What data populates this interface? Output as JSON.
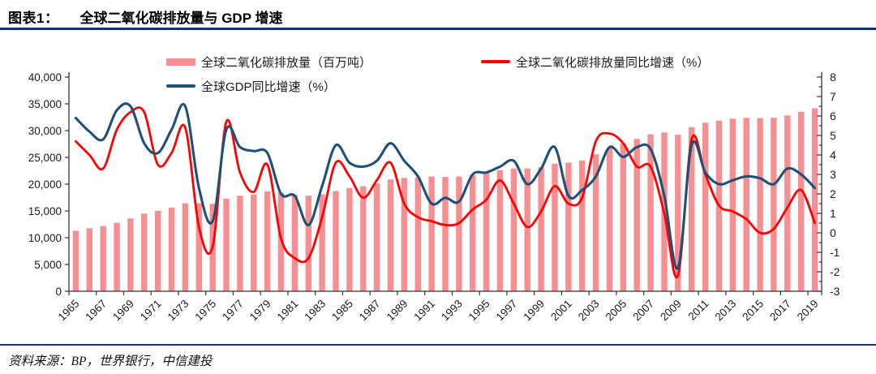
{
  "header": {
    "figure_label": "图表1：",
    "title": "全球二氧化碳排放量与 GDP 增速"
  },
  "footer": {
    "source": "资料来源：BP，世界银行，中信建投"
  },
  "colors": {
    "rule_blue": "#17375E",
    "bar_pink": "#F78F92",
    "line_red": "#FF0000",
    "line_blue": "#1F5078",
    "axis": "#333333",
    "text": "#1A1A1A",
    "background": "#FFFFFF"
  },
  "chart_data": {
    "type": "combo",
    "title": "全球二氧化碳排放量与 GDP 增速",
    "legend_position": "top",
    "grid": false,
    "x_years": [
      1965,
      1966,
      1967,
      1968,
      1969,
      1970,
      1971,
      1972,
      1973,
      1974,
      1975,
      1976,
      1977,
      1978,
      1979,
      1980,
      1981,
      1982,
      1983,
      1984,
      1985,
      1986,
      1987,
      1988,
      1989,
      1990,
      1991,
      1992,
      1993,
      1994,
      1995,
      1996,
      1997,
      1998,
      1999,
      2000,
      2001,
      2002,
      2003,
      2004,
      2005,
      2006,
      2007,
      2008,
      2009,
      2010,
      2011,
      2012,
      2013,
      2014,
      2015,
      2016,
      2017,
      2018,
      2019
    ],
    "x_tick_labels": [
      "1965",
      "1967",
      "1969",
      "1971",
      "1973",
      "1975",
      "1977",
      "1979",
      "1981",
      "1983",
      "1985",
      "1987",
      "1989",
      "1991",
      "1993",
      "1995",
      "1997",
      "1999",
      "2001",
      "2003",
      "2005",
      "2007",
      "2009",
      "2011",
      "2013",
      "2015",
      "2017",
      "2019"
    ],
    "left_axis": {
      "min": 0,
      "max": 40000,
      "step": 5000,
      "tick_labels": [
        "0",
        "5,000",
        "10,000",
        "15,000",
        "20,000",
        "25,000",
        "30,000",
        "35,000",
        "40,000"
      ]
    },
    "right_axis": {
      "min": -3,
      "max": 8,
      "step": 1,
      "minor_step": 0.5,
      "tick_labels": [
        "-3",
        "-2",
        "-1",
        "0",
        "1",
        "2",
        "3",
        "4",
        "5",
        "6",
        "7",
        "8"
      ]
    },
    "series": [
      {
        "name": "全球二氧化碳排放量（百万吨）",
        "type": "bar",
        "axis": "left",
        "color": "#F78F92",
        "values": [
          11300,
          11750,
          12150,
          12800,
          13600,
          14500,
          15030,
          15640,
          16430,
          16440,
          16340,
          17310,
          17850,
          18080,
          18650,
          18440,
          17990,
          17850,
          18110,
          18730,
          19280,
          19600,
          20130,
          20880,
          21160,
          21290,
          21430,
          21350,
          21430,
          21680,
          22040,
          22610,
          22920,
          22940,
          23180,
          23840,
          24010,
          24420,
          25580,
          26770,
          27630,
          28450,
          29300,
          29650,
          29230,
          30640,
          31470,
          31880,
          32220,
          32390,
          32350,
          32390,
          32840,
          33510,
          34170
        ]
      },
      {
        "name": "全球二氧化碳排放量同比增速（%）",
        "type": "line",
        "axis": "right",
        "color": "#FF0000",
        "values": [
          4.7,
          4.0,
          3.3,
          5.3,
          6.2,
          6.2,
          3.5,
          4.1,
          5.4,
          0.3,
          -0.7,
          5.7,
          3.1,
          2.1,
          3.5,
          -0.3,
          -1.3,
          -1.3,
          0.8,
          3.6,
          2.9,
          1.8,
          2.7,
          3.6,
          1.5,
          0.8,
          0.6,
          0.4,
          0.5,
          1.2,
          1.7,
          2.7,
          1.5,
          0.3,
          1.1,
          2.4,
          1.5,
          1.8,
          4.7,
          5.1,
          4.6,
          3.4,
          3.4,
          1.0,
          -2.2,
          4.8,
          3.0,
          1.4,
          1.1,
          0.7,
          0.0,
          0.2,
          1.3,
          2.2,
          0.5
        ]
      },
      {
        "name": "全球GDP同比增速（%）",
        "type": "line",
        "axis": "right",
        "color": "#1F5078",
        "values": [
          5.9,
          5.2,
          4.8,
          6.3,
          6.5,
          4.6,
          4.1,
          5.3,
          6.5,
          2.3,
          0.6,
          5.3,
          4.4,
          4.2,
          4.1,
          2.0,
          1.9,
          0.4,
          2.4,
          4.5,
          3.6,
          3.4,
          3.7,
          4.6,
          3.7,
          2.9,
          1.5,
          1.8,
          1.6,
          3.0,
          3.1,
          3.4,
          3.7,
          2.5,
          3.3,
          4.4,
          1.9,
          2.2,
          2.9,
          4.4,
          3.9,
          4.4,
          4.3,
          1.9,
          -1.8,
          4.5,
          3.1,
          2.5,
          2.7,
          2.9,
          2.8,
          2.5,
          3.3,
          3.0,
          2.3
        ]
      }
    ]
  }
}
